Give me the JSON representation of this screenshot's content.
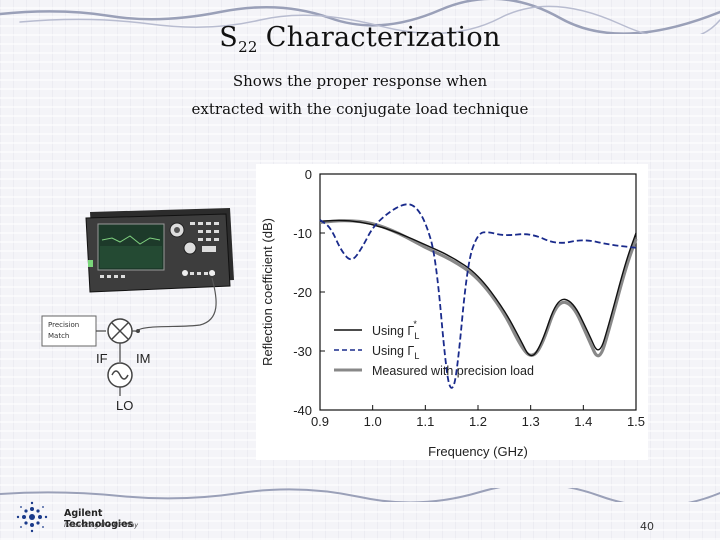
{
  "slide": {
    "title_main": "S",
    "title_sub": "22",
    "title_rest": "Characterization",
    "subtitle_line1": "Shows the proper response when",
    "subtitle_line2": "extracted with the conjugate load technique",
    "page_number": "40"
  },
  "logo": {
    "line1": "Agilent Technologies",
    "line2": "Innovating the HP Way"
  },
  "diagram": {
    "precision_match_line1": "Precision",
    "precision_match_line2": "Match",
    "if_label": "IF",
    "im_label": "IM",
    "lo_label": "LO"
  },
  "chart_data": {
    "type": "line",
    "xlabel": "Frequency (GHz)",
    "ylabel": "Reflection coefficient (dB)",
    "xlim": [
      0.9,
      1.5
    ],
    "ylim": [
      -40,
      0
    ],
    "xticks": [
      "0.9",
      "1.0",
      "1.1",
      "1.2",
      "1.3",
      "1.4",
      "1.5"
    ],
    "yticks": [
      "0",
      "-10",
      "-20",
      "-30",
      "-40"
    ],
    "legend_position": "bottom-right",
    "series": [
      {
        "legend_text": "Using Γ",
        "legend_sub": "L",
        "legend_sup": "*",
        "style": "solid",
        "color": "#111111",
        "x": [
          0.9,
          0.95,
          1.0,
          1.05,
          1.1,
          1.15,
          1.2,
          1.25,
          1.28,
          1.3,
          1.32,
          1.35,
          1.38,
          1.41,
          1.43,
          1.45,
          1.48,
          1.5
        ],
        "y": [
          -8,
          -7.8,
          -8.5,
          -10,
          -12,
          -14,
          -17,
          -23,
          -28,
          -31.5,
          -29,
          -21,
          -21.5,
          -27,
          -31,
          -25,
          -15,
          -10
        ]
      },
      {
        "legend_text": "Using Γ",
        "legend_sub": "L",
        "legend_sup": "",
        "style": "dashed",
        "color": "#1a2b8c",
        "x": [
          0.9,
          0.92,
          0.94,
          0.96,
          0.98,
          1.0,
          1.03,
          1.06,
          1.08,
          1.1,
          1.12,
          1.14,
          1.15,
          1.16,
          1.18,
          1.2,
          1.22,
          1.25,
          1.3,
          1.35,
          1.4,
          1.45,
          1.5
        ],
        "y": [
          -7.8,
          -9,
          -13,
          -15,
          -12.5,
          -9,
          -6.5,
          -5,
          -5.3,
          -8,
          -14,
          -34,
          -37,
          -34,
          -15,
          -10,
          -9.8,
          -10.5,
          -10,
          -12,
          -11,
          -12,
          -12.5
        ]
      },
      {
        "legend_text": "Measured with precision load",
        "legend_sub": "",
        "legend_sup": "",
        "style": "solid-thick",
        "color": "#888888",
        "x": [
          0.9,
          0.95,
          1.0,
          1.05,
          1.1,
          1.15,
          1.2,
          1.25,
          1.28,
          1.3,
          1.32,
          1.35,
          1.38,
          1.41,
          1.43,
          1.45,
          1.48,
          1.5
        ],
        "y": [
          -8.2,
          -7.8,
          -8.3,
          -10,
          -12.5,
          -14.5,
          -17.5,
          -23.5,
          -29,
          -31.2,
          -29.5,
          -21.5,
          -22,
          -28,
          -32,
          -26,
          -16,
          -11
        ]
      }
    ]
  }
}
